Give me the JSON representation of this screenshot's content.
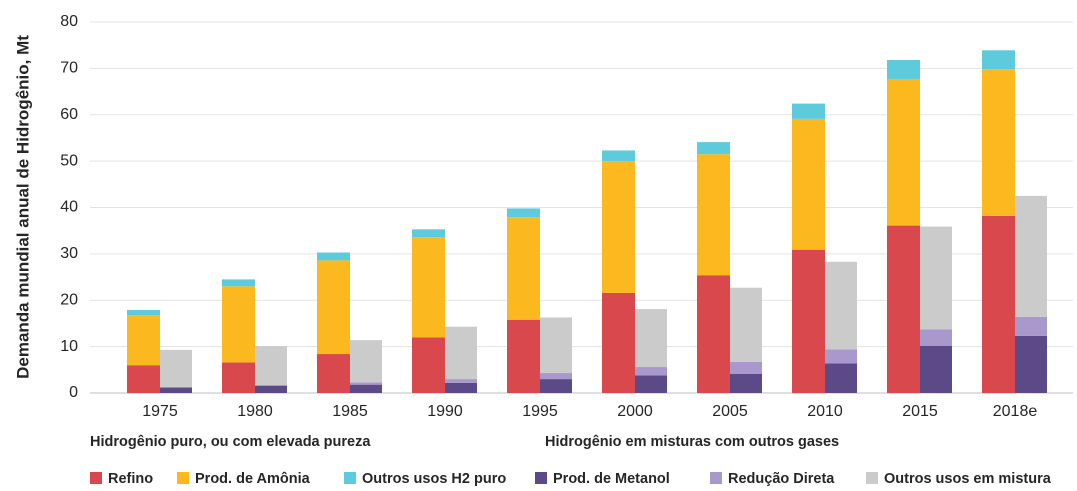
{
  "chart_data": {
    "type": "grouped-stacked-bar",
    "y_label": "Demanda mundial anual de Hidrogênio, Mt",
    "categories": [
      "1975",
      "1980",
      "1985",
      "1990",
      "1995",
      "2000",
      "2005",
      "2010",
      "2015",
      "2018e"
    ],
    "ylim": [
      0,
      80
    ],
    "yticks": [
      0,
      10,
      20,
      30,
      40,
      50,
      60,
      70,
      80
    ],
    "grid": true,
    "legend": "bottom",
    "groups": [
      {
        "label": "Hidrogênio puro, ou com elevada pureza",
        "series": [
          {
            "name": "Refino",
            "color": "#d9484d",
            "values": [
              6.0,
              6.6,
              8.4,
              12.0,
              15.8,
              21.6,
              25.4,
              30.9,
              36.1,
              38.2
            ]
          },
          {
            "name": "Prod. de Amônia",
            "color": "#fbb91f",
            "values": [
              10.8,
              16.4,
              20.2,
              21.6,
              22.1,
              28.4,
              26.1,
              28.2,
              31.6,
              31.6
            ]
          },
          {
            "name": "Outros usos H2 puro",
            "color": "#5ecbdd",
            "values": [
              1.1,
              1.5,
              1.7,
              1.7,
              1.9,
              2.3,
              2.6,
              3.3,
              4.1,
              4.1
            ]
          }
        ]
      },
      {
        "label": "Hidrogênio em misturas com outros gases",
        "series": [
          {
            "name": "Prod. de Metanol",
            "color": "#5b4a87",
            "values": [
              1.2,
              1.6,
              1.8,
              2.2,
              3.0,
              3.8,
              4.1,
              6.4,
              10.2,
              12.3
            ]
          },
          {
            "name": "Redução Direta",
            "color": "#a998cc",
            "values": [
              0,
              0,
              0.5,
              0.8,
              1.3,
              1.8,
              2.6,
              3.0,
              3.5,
              4.1
            ]
          },
          {
            "name": "Outros usos em mistura",
            "color": "#cbcbcb",
            "values": [
              8.1,
              8.5,
              9.1,
              11.3,
              12.0,
              12.5,
              16.0,
              18.9,
              22.2,
              26.1
            ]
          }
        ]
      }
    ]
  }
}
